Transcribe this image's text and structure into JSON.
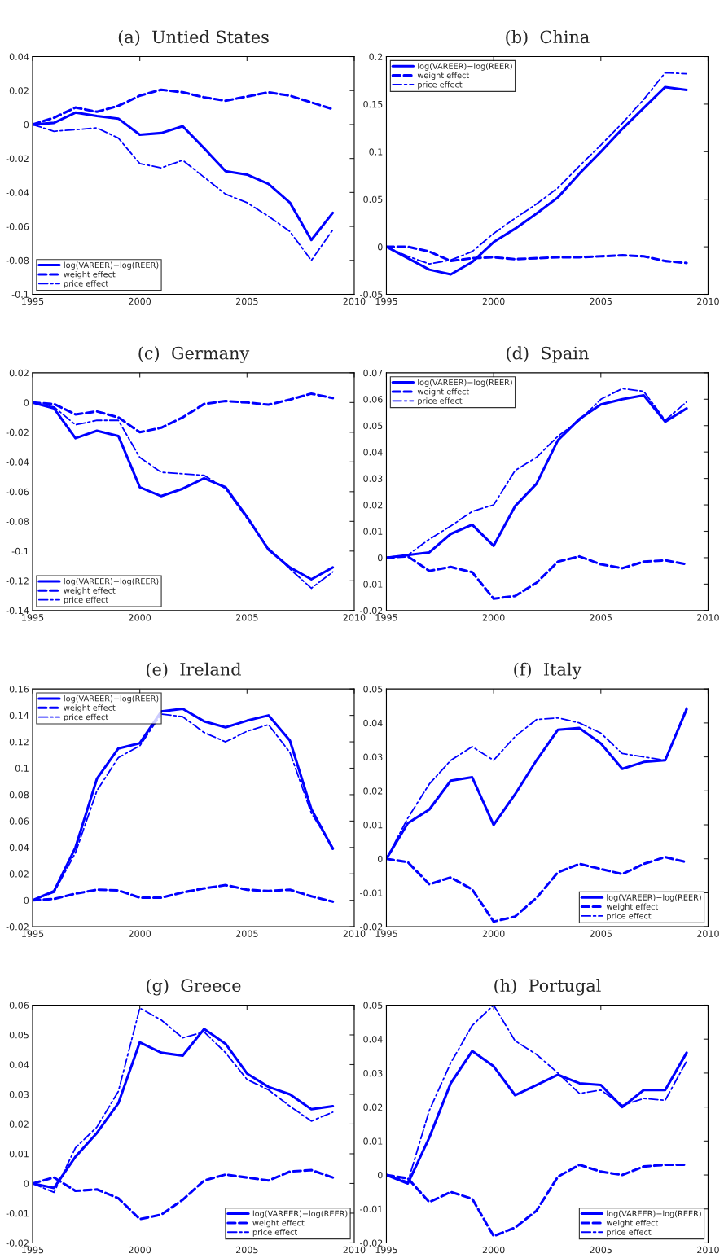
{
  "chart_data": [
    {
      "type": "line",
      "title": "(a)  Untied States",
      "x": [
        1995,
        1996,
        1997,
        1998,
        1999,
        2000,
        2001,
        2002,
        2003,
        2004,
        2005,
        2006,
        2007,
        2008,
        2009
      ],
      "xlim": [
        1995,
        2010
      ],
      "xticks": [
        1995,
        2000,
        2005,
        2010
      ],
      "ylim": [
        -0.1,
        0.04
      ],
      "yticks": [
        -0.1,
        -0.08,
        -0.06,
        -0.04,
        -0.02,
        0,
        0.02,
        0.04
      ],
      "legend": "bottom left",
      "grid": false,
      "marker": "none",
      "series": [
        {
          "name": "log(VAREER)−log(REER)",
          "color": "#0000ff",
          "line_style": "solid",
          "values": [
            0,
            0.001,
            0.007,
            0.005,
            0.0035,
            -0.006,
            -0.005,
            -0.001,
            -0.014,
            -0.0275,
            -0.0295,
            -0.035,
            -0.046,
            -0.068,
            -0.052
          ]
        },
        {
          "name": "weight effect",
          "color": "#0000ff",
          "line_style": "dashed",
          "values": [
            0,
            0.004,
            0.01,
            0.0075,
            0.011,
            0.017,
            0.0205,
            0.019,
            0.016,
            0.014,
            0.0165,
            0.019,
            0.017,
            0.013,
            0.009
          ]
        },
        {
          "name": "price effect",
          "color": "#0000ff",
          "line_style": "dashdot",
          "values": [
            0,
            -0.004,
            -0.003,
            -0.002,
            -0.008,
            -0.023,
            -0.0255,
            -0.021,
            -0.031,
            -0.041,
            -0.046,
            -0.054,
            -0.063,
            -0.08,
            -0.062
          ]
        }
      ]
    },
    {
      "type": "line",
      "title": "(b)  China",
      "x": [
        1995,
        1996,
        1997,
        1998,
        1999,
        2000,
        2001,
        2002,
        2003,
        2004,
        2005,
        2006,
        2007,
        2008,
        2009
      ],
      "xlim": [
        1995,
        2010
      ],
      "xticks": [
        1995,
        2000,
        2005,
        2010
      ],
      "ylim": [
        -0.05,
        0.2
      ],
      "yticks": [
        -0.05,
        0,
        0.05,
        0.1,
        0.15,
        0.2
      ],
      "legend": "top left",
      "grid": false,
      "marker": "none",
      "series": [
        {
          "name": "log(VAREER)−log(REER)",
          "color": "#0000ff",
          "line_style": "solid",
          "values": [
            0,
            -0.012,
            -0.024,
            -0.029,
            -0.016,
            0.005,
            0.019,
            0.035,
            0.052,
            0.077,
            0.1,
            0.124,
            0.146,
            0.168,
            0.165
          ]
        },
        {
          "name": "weight effect",
          "color": "#0000ff",
          "line_style": "dashed",
          "values": [
            0,
            0.0,
            -0.005,
            -0.015,
            -0.012,
            -0.011,
            -0.013,
            -0.012,
            -0.011,
            -0.011,
            -0.01,
            -0.009,
            -0.01,
            -0.015,
            -0.017
          ]
        },
        {
          "name": "price effect",
          "color": "#0000ff",
          "line_style": "dashdot",
          "values": [
            0,
            -0.01,
            -0.018,
            -0.014,
            -0.005,
            0.014,
            0.03,
            0.045,
            0.062,
            0.085,
            0.107,
            0.13,
            0.155,
            0.183,
            0.182
          ]
        }
      ]
    },
    {
      "type": "line",
      "title": "(c)  Germany",
      "x": [
        1995,
        1996,
        1997,
        1998,
        1999,
        2000,
        2001,
        2002,
        2003,
        2004,
        2005,
        2006,
        2007,
        2008,
        2009
      ],
      "xlim": [
        1995,
        2010
      ],
      "xticks": [
        1995,
        2000,
        2005,
        2010
      ],
      "ylim": [
        -0.14,
        0.02
      ],
      "yticks": [
        -0.14,
        -0.12,
        -0.1,
        -0.08,
        -0.06,
        -0.04,
        -0.02,
        0,
        0.02
      ],
      "legend": "bottom left",
      "grid": false,
      "marker": "none",
      "series": [
        {
          "name": "log(VAREER)−log(REER)",
          "color": "#0000ff",
          "line_style": "solid",
          "values": [
            0,
            -0.004,
            -0.024,
            -0.019,
            -0.0225,
            -0.057,
            -0.063,
            -0.058,
            -0.051,
            -0.057,
            -0.077,
            -0.099,
            -0.111,
            -0.119,
            -0.111
          ]
        },
        {
          "name": "weight effect",
          "color": "#0000ff",
          "line_style": "dashed",
          "values": [
            0,
            -0.001,
            -0.008,
            -0.006,
            -0.01,
            -0.02,
            -0.017,
            -0.01,
            -0.001,
            0.001,
            0.0,
            -0.0015,
            0.002,
            0.006,
            0.003
          ]
        },
        {
          "name": "price effect",
          "color": "#0000ff",
          "line_style": "dashdot",
          "values": [
            0,
            -0.003,
            -0.015,
            -0.012,
            -0.012,
            -0.037,
            -0.047,
            -0.048,
            -0.049,
            -0.058,
            -0.078,
            -0.098,
            -0.112,
            -0.125,
            -0.114
          ]
        }
      ]
    },
    {
      "type": "line",
      "title": "(d)  Spain",
      "x": [
        1995,
        1996,
        1997,
        1998,
        1999,
        2000,
        2001,
        2002,
        2003,
        2004,
        2005,
        2006,
        2007,
        2008,
        2009
      ],
      "xlim": [
        1995,
        2010
      ],
      "xticks": [
        1995,
        2000,
        2005,
        2010
      ],
      "ylim": [
        -0.02,
        0.07
      ],
      "yticks": [
        -0.02,
        -0.01,
        0,
        0.01,
        0.02,
        0.03,
        0.04,
        0.05,
        0.06,
        0.07
      ],
      "legend": "top left",
      "grid": false,
      "marker": "none",
      "series": [
        {
          "name": "log(VAREER)−log(REER)",
          "color": "#0000ff",
          "line_style": "solid",
          "values": [
            0,
            0.001,
            0.002,
            0.009,
            0.0125,
            0.0045,
            0.0195,
            0.028,
            0.0445,
            0.0525,
            0.058,
            0.06,
            0.0615,
            0.0515,
            0.0565
          ]
        },
        {
          "name": "weight effect",
          "color": "#0000ff",
          "line_style": "dashed",
          "values": [
            0,
            0.0005,
            -0.005,
            -0.0035,
            -0.0055,
            -0.0155,
            -0.0145,
            -0.0095,
            -0.0015,
            0.0005,
            -0.0025,
            -0.004,
            -0.0015,
            -0.001,
            -0.0025
          ]
        },
        {
          "name": "price effect",
          "color": "#0000ff",
          "line_style": "dashdot",
          "values": [
            0,
            0.001,
            0.007,
            0.012,
            0.0175,
            0.02,
            0.033,
            0.038,
            0.046,
            0.052,
            0.06,
            0.064,
            0.063,
            0.052,
            0.059
          ]
        }
      ]
    },
    {
      "type": "line",
      "title": "(e)  Ireland",
      "x": [
        1995,
        1996,
        1997,
        1998,
        1999,
        2000,
        2001,
        2002,
        2003,
        2004,
        2005,
        2006,
        2007,
        2008,
        2009
      ],
      "xlim": [
        1995,
        2010
      ],
      "xticks": [
        1995,
        2000,
        2005,
        2010
      ],
      "ylim": [
        -0.02,
        0.16
      ],
      "yticks": [
        -0.02,
        0,
        0.02,
        0.04,
        0.06,
        0.08,
        0.1,
        0.12,
        0.14,
        0.16
      ],
      "legend": "top left",
      "grid": false,
      "marker": "none",
      "series": [
        {
          "name": "log(VAREER)−log(REER)",
          "color": "#0000ff",
          "line_style": "solid",
          "values": [
            0,
            0.007,
            0.04,
            0.092,
            0.115,
            0.119,
            0.143,
            0.145,
            0.1355,
            0.131,
            0.136,
            0.14,
            0.121,
            0.069,
            0.039
          ]
        },
        {
          "name": "weight effect",
          "color": "#0000ff",
          "line_style": "dashed",
          "values": [
            0,
            0.001,
            0.005,
            0.008,
            0.0075,
            0.002,
            0.002,
            0.006,
            0.009,
            0.0115,
            0.008,
            0.007,
            0.008,
            0.003,
            -0.001
          ]
        },
        {
          "name": "price effect",
          "color": "#0000ff",
          "line_style": "dashdot",
          "values": [
            0,
            0.006,
            0.036,
            0.083,
            0.108,
            0.117,
            0.141,
            0.139,
            0.127,
            0.12,
            0.128,
            0.133,
            0.112,
            0.066,
            0.04
          ]
        }
      ]
    },
    {
      "type": "line",
      "title": "(f)  Italy",
      "x": [
        1995,
        1996,
        1997,
        1998,
        1999,
        2000,
        2001,
        2002,
        2003,
        2004,
        2005,
        2006,
        2007,
        2008,
        2009
      ],
      "xlim": [
        1995,
        2010
      ],
      "xticks": [
        1995,
        2000,
        2005,
        2010
      ],
      "ylim": [
        -0.02,
        0.05
      ],
      "yticks": [
        -0.02,
        -0.01,
        0,
        0.01,
        0.02,
        0.03,
        0.04,
        0.05
      ],
      "legend": "bottom right",
      "grid": false,
      "marker": "none",
      "series": [
        {
          "name": "log(VAREER)−log(REER)",
          "color": "#0000ff",
          "line_style": "solid",
          "values": [
            0,
            0.0105,
            0.0145,
            0.023,
            0.024,
            0.01,
            0.019,
            0.029,
            0.038,
            0.0385,
            0.034,
            0.0265,
            0.0285,
            0.029,
            0.044
          ]
        },
        {
          "name": "weight effect",
          "color": "#0000ff",
          "line_style": "dashed",
          "values": [
            0,
            -0.001,
            -0.0075,
            -0.0055,
            -0.009,
            -0.0185,
            -0.017,
            -0.0115,
            -0.004,
            -0.0015,
            -0.003,
            -0.0045,
            -0.0015,
            0.0005,
            -0.001
          ]
        },
        {
          "name": "price effect",
          "color": "#0000ff",
          "line_style": "dashdot",
          "values": [
            0,
            0.012,
            0.022,
            0.029,
            0.033,
            0.029,
            0.036,
            0.041,
            0.0415,
            0.04,
            0.037,
            0.031,
            0.03,
            0.029,
            0.0445
          ]
        }
      ]
    },
    {
      "type": "line",
      "title": "(g)  Greece",
      "x": [
        1995,
        1996,
        1997,
        1998,
        1999,
        2000,
        2001,
        2002,
        2003,
        2004,
        2005,
        2006,
        2007,
        2008,
        2009
      ],
      "xlim": [
        1995,
        2010
      ],
      "xticks": [
        1995,
        2000,
        2005,
        2010
      ],
      "ylim": [
        -0.02,
        0.06
      ],
      "yticks": [
        -0.02,
        -0.01,
        0,
        0.01,
        0.02,
        0.03,
        0.04,
        0.05,
        0.06
      ],
      "legend": "bottom right",
      "grid": false,
      "marker": "none",
      "series": [
        {
          "name": "log(VAREER)−log(REER)",
          "color": "#0000ff",
          "line_style": "solid",
          "values": [
            0,
            -0.0015,
            0.009,
            0.017,
            0.027,
            0.0475,
            0.044,
            0.043,
            0.052,
            0.047,
            0.037,
            0.0325,
            0.03,
            0.025,
            0.026
          ]
        },
        {
          "name": "weight effect",
          "color": "#0000ff",
          "line_style": "dashed",
          "values": [
            0,
            0.002,
            -0.0025,
            -0.002,
            -0.005,
            -0.012,
            -0.0105,
            -0.0055,
            0.001,
            0.003,
            0.002,
            0.001,
            0.004,
            0.0045,
            0.002
          ]
        },
        {
          "name": "price effect",
          "color": "#0000ff",
          "line_style": "dashdot",
          "values": [
            0,
            -0.003,
            0.012,
            0.019,
            0.031,
            0.059,
            0.055,
            0.049,
            0.051,
            0.044,
            0.035,
            0.0315,
            0.026,
            0.021,
            0.024
          ]
        }
      ]
    },
    {
      "type": "line",
      "title": "(h)  Portugal",
      "x": [
        1995,
        1996,
        1997,
        1998,
        1999,
        2000,
        2001,
        2002,
        2003,
        2004,
        2005,
        2006,
        2007,
        2008,
        2009
      ],
      "xlim": [
        1995,
        2010
      ],
      "xticks": [
        1995,
        2000,
        2005,
        2010
      ],
      "ylim": [
        -0.02,
        0.05
      ],
      "yticks": [
        -0.02,
        -0.01,
        0,
        0.01,
        0.02,
        0.03,
        0.04,
        0.05
      ],
      "legend": "bottom right",
      "grid": false,
      "marker": "none",
      "series": [
        {
          "name": "log(VAREER)−log(REER)",
          "color": "#0000ff",
          "line_style": "solid",
          "values": [
            0,
            -0.0025,
            0.011,
            0.027,
            0.0365,
            0.032,
            0.0235,
            0.0265,
            0.0295,
            0.027,
            0.0265,
            0.02,
            0.025,
            0.025,
            0.036
          ]
        },
        {
          "name": "weight effect",
          "color": "#0000ff",
          "line_style": "dashed",
          "values": [
            0,
            -0.001,
            -0.008,
            -0.005,
            -0.007,
            -0.018,
            -0.0155,
            -0.0105,
            -0.0005,
            0.003,
            0.001,
            0.0,
            0.0025,
            0.003,
            0.003
          ]
        },
        {
          "name": "price effect",
          "color": "#0000ff",
          "line_style": "dashdot",
          "values": [
            0,
            -0.002,
            0.019,
            0.033,
            0.044,
            0.05,
            0.0395,
            0.0355,
            0.03,
            0.024,
            0.025,
            0.0205,
            0.0225,
            0.022,
            0.0335
          ]
        }
      ]
    }
  ]
}
